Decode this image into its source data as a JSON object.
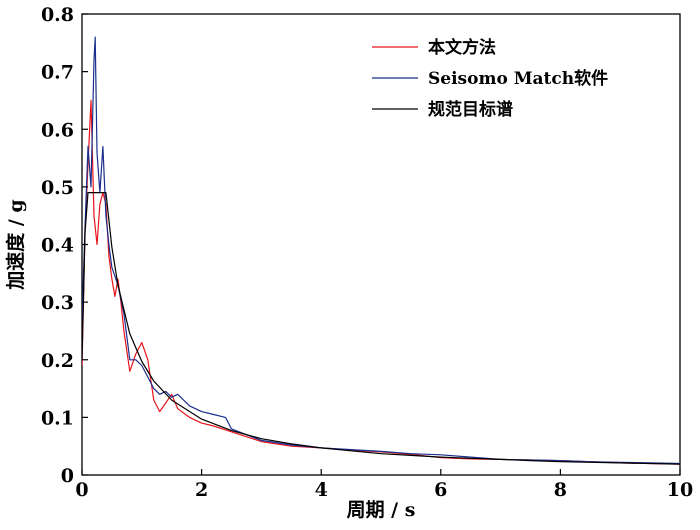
{
  "chart_data": {
    "type": "line",
    "xlabel": "周期 / s",
    "ylabel": "加速度 / g",
    "xlim": [
      0,
      10
    ],
    "ylim": [
      0,
      0.8
    ],
    "xticks": [
      0,
      2,
      4,
      6,
      8,
      10
    ],
    "yticks": [
      0,
      0.1,
      0.2,
      0.3,
      0.4,
      0.5,
      0.6,
      0.7,
      0.8
    ],
    "xtick_labels": [
      "0",
      "2",
      "4",
      "6",
      "8",
      "10"
    ],
    "ytick_labels": [
      "0",
      "0.1",
      "0.2",
      "0.3",
      "0.4",
      "0.5",
      "0.6",
      "0.7",
      "0.8"
    ],
    "grid": false,
    "legend": "top-right",
    "series": [
      {
        "name": "本文方法",
        "color": "#e8141c",
        "x": [
          0,
          0.05,
          0.1,
          0.15,
          0.2,
          0.25,
          0.3,
          0.35,
          0.4,
          0.45,
          0.5,
          0.55,
          0.6,
          0.65,
          0.7,
          0.8,
          0.9,
          1.0,
          1.1,
          1.2,
          1.3,
          1.4,
          1.5,
          1.6,
          1.8,
          2.0,
          2.2,
          2.5,
          3.0,
          3.5,
          4.0,
          4.5,
          5.0,
          5.5,
          6.0,
          6.5,
          7.0,
          7.5,
          8.0,
          8.5,
          9.0,
          9.5,
          10.0
        ],
        "y": [
          0.19,
          0.42,
          0.54,
          0.65,
          0.45,
          0.4,
          0.47,
          0.49,
          0.47,
          0.38,
          0.34,
          0.31,
          0.34,
          0.3,
          0.25,
          0.18,
          0.21,
          0.23,
          0.2,
          0.13,
          0.11,
          0.125,
          0.14,
          0.115,
          0.1,
          0.09,
          0.085,
          0.075,
          0.058,
          0.05,
          0.047,
          0.043,
          0.04,
          0.036,
          0.03,
          0.028,
          0.027,
          0.026,
          0.025,
          0.023,
          0.021,
          0.02,
          0.019
        ]
      },
      {
        "name": "Seisomo Match软件",
        "color": "#1a2f8c",
        "x": [
          0,
          0.05,
          0.1,
          0.15,
          0.2,
          0.22,
          0.25,
          0.3,
          0.35,
          0.4,
          0.45,
          0.5,
          0.6,
          0.7,
          0.8,
          0.9,
          1.0,
          1.1,
          1.2,
          1.3,
          1.4,
          1.5,
          1.6,
          1.8,
          2.0,
          2.2,
          2.4,
          2.5,
          3.0,
          3.5,
          4.0,
          4.5,
          5.0,
          5.5,
          6.0,
          6.5,
          7.0,
          7.5,
          8.0,
          8.5,
          9.0,
          9.5,
          10.0
        ],
        "y": [
          0.27,
          0.43,
          0.57,
          0.5,
          0.72,
          0.76,
          0.56,
          0.49,
          0.57,
          0.45,
          0.4,
          0.36,
          0.33,
          0.28,
          0.2,
          0.2,
          0.19,
          0.17,
          0.15,
          0.14,
          0.145,
          0.135,
          0.14,
          0.12,
          0.11,
          0.105,
          0.1,
          0.08,
          0.06,
          0.052,
          0.047,
          0.044,
          0.041,
          0.037,
          0.035,
          0.031,
          0.027,
          0.026,
          0.025,
          0.023,
          0.022,
          0.021,
          0.02
        ]
      },
      {
        "name": "规范目标谱",
        "color": "#000000",
        "x": [
          0,
          0.05,
          0.1,
          0.4,
          0.5,
          0.6,
          0.8,
          1.0,
          1.2,
          1.5,
          2.0,
          2.5,
          3.0,
          3.5,
          4.0,
          4.5,
          5.0,
          5.5,
          6.0,
          6.5,
          7.0,
          7.5,
          8.0,
          8.5,
          9.0,
          9.5,
          10.0
        ],
        "y": [
          0.2,
          0.42,
          0.49,
          0.49,
          0.395,
          0.33,
          0.245,
          0.197,
          0.163,
          0.13,
          0.097,
          0.077,
          0.063,
          0.054,
          0.047,
          0.042,
          0.037,
          0.034,
          0.031,
          0.029,
          0.027,
          0.025,
          0.023,
          0.022,
          0.021,
          0.02,
          0.019
        ]
      }
    ]
  }
}
